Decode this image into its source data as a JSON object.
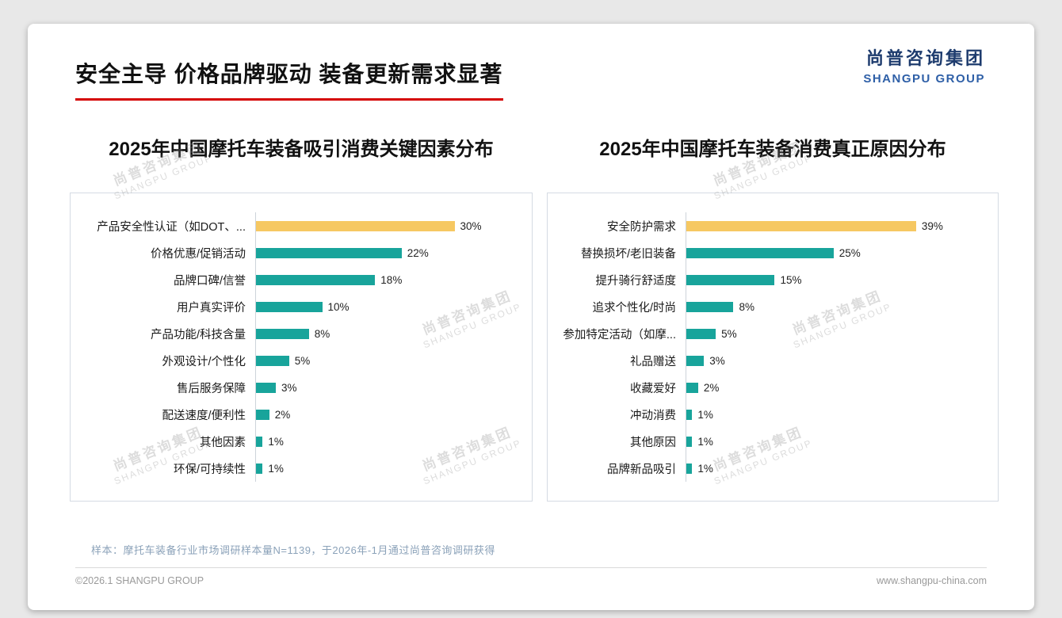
{
  "header": {
    "title": "安全主导 价格品牌驱动 装备更新需求显著",
    "logo_cn": "尚普咨询集团",
    "logo_en": "SHANGPU GROUP"
  },
  "watermark": {
    "cn": "尚普咨询集团",
    "en": "SHANGPU GROUP"
  },
  "colors": {
    "accent_underline": "#D40000",
    "bar_teal": "#18A49B",
    "bar_gold": "#F6C862",
    "logo_navy": "#1E3C6E",
    "logo_blue": "#2E5FA7"
  },
  "chart_data": [
    {
      "type": "bar",
      "orientation": "horizontal",
      "title": "2025年中国摩托车装备吸引消费关键因素分布",
      "unit": "%",
      "categories": [
        "产品安全性认证（如DOT、...",
        "价格优惠/促销活动",
        "品牌口碑/信誉",
        "用户真实评价",
        "产品功能/科技含量",
        "外观设计/个性化",
        "售后服务保障",
        "配送速度/便利性",
        "其他因素",
        "环保/可持续性"
      ],
      "values": [
        30,
        22,
        18,
        10,
        8,
        5,
        3,
        2,
        1,
        1
      ],
      "highlight_index": 0,
      "xlim": [
        0,
        40
      ],
      "grid": false,
      "legend": false,
      "value_labels": "outside-end"
    },
    {
      "type": "bar",
      "orientation": "horizontal",
      "title": "2025年中国摩托车装备消费真正原因分布",
      "unit": "%",
      "categories": [
        "安全防护需求",
        "替换损坏/老旧装备",
        "提升骑行舒适度",
        "追求个性化/时尚",
        "参加特定活动（如摩...",
        "礼品赠送",
        "收藏爱好",
        "冲动消费",
        "其他原因",
        "品牌新品吸引"
      ],
      "values": [
        39,
        25,
        15,
        8,
        5,
        3,
        2,
        1,
        1,
        1
      ],
      "highlight_index": 0,
      "xlim": [
        0,
        51
      ],
      "grid": false,
      "legend": false,
      "value_labels": "outside-end"
    }
  ],
  "footer": {
    "note": "样本：摩托车装备行业市场调研样本量N=1139，于2026年-1月通过尚普咨询调研获得",
    "copyright": "©2026.1 SHANGPU GROUP",
    "website": "www.shangpu-china.com"
  }
}
